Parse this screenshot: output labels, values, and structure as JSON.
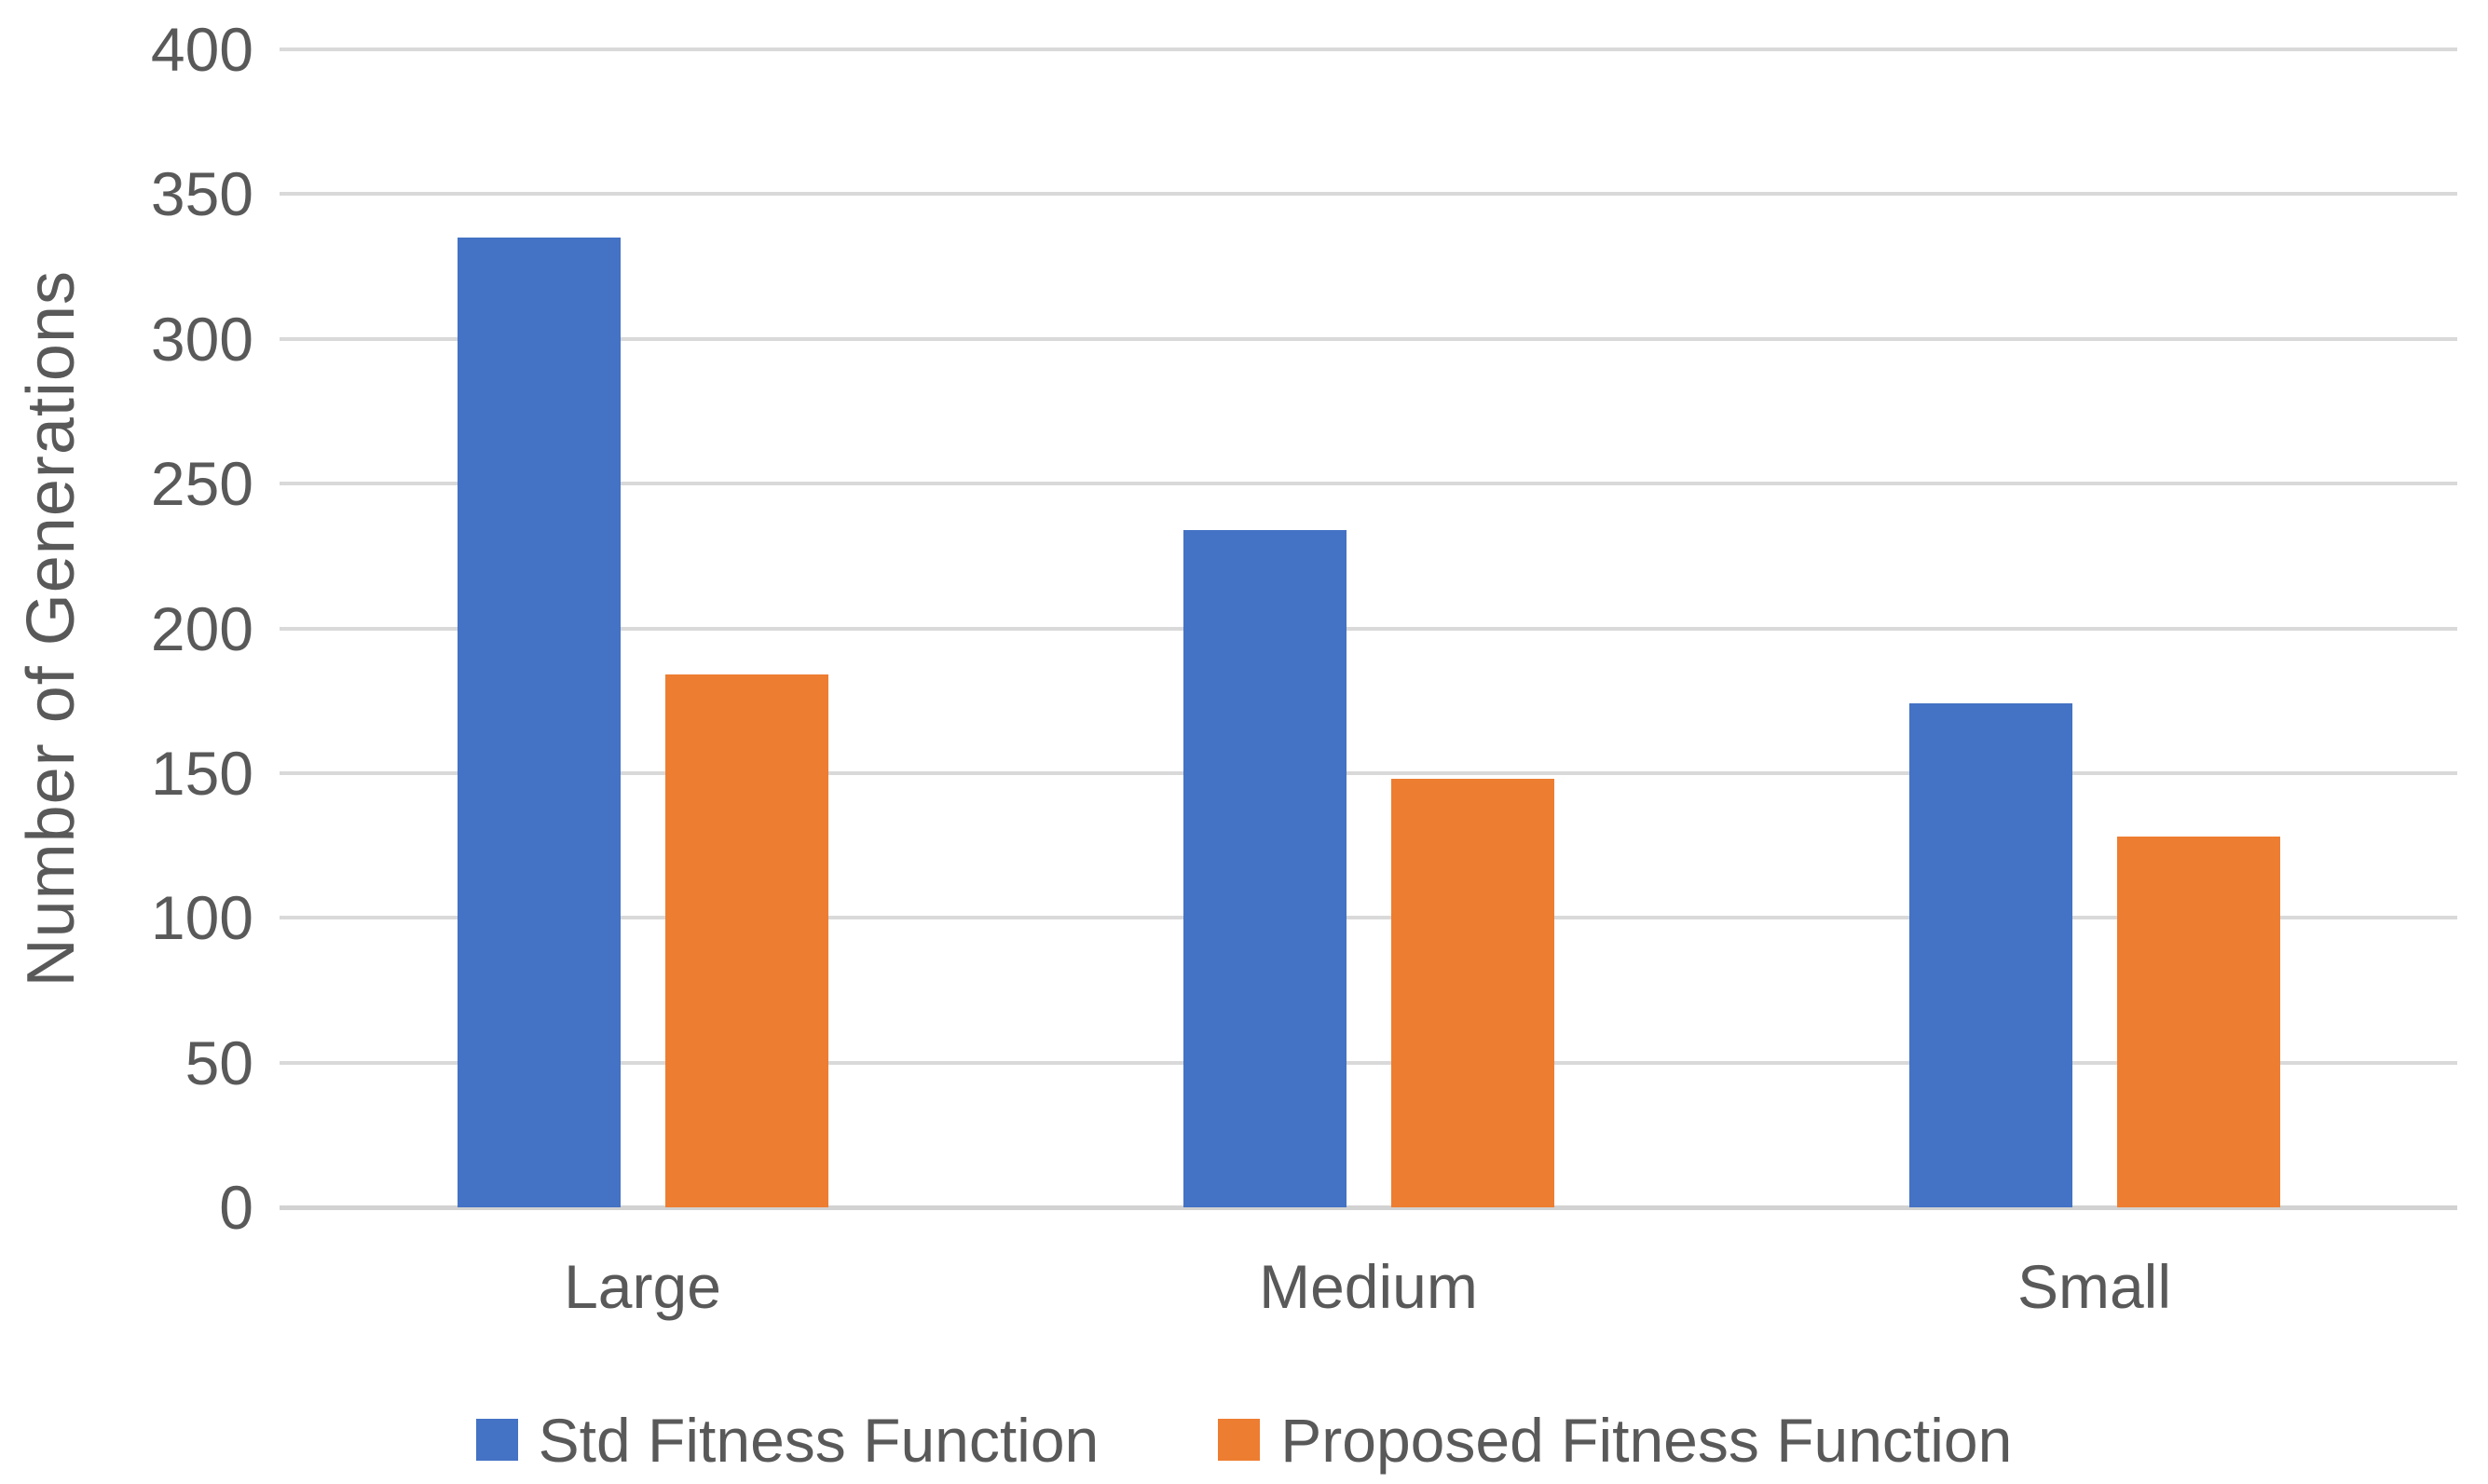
{
  "chart_data": {
    "type": "bar",
    "title": "",
    "categories": [
      "Large",
      "Medium",
      "Small"
    ],
    "series": [
      {
        "name": "Std Fitness Function",
        "color": "#4472C4",
        "values": [
          335,
          234,
          174
        ]
      },
      {
        "name": "Proposed Fitness Function",
        "color": "#ED7D31",
        "values": [
          184,
          148,
          128
        ]
      }
    ],
    "xlabel": "",
    "ylabel": "Number of Generations",
    "ylim": [
      0,
      400
    ],
    "yticks": [
      0,
      50,
      100,
      150,
      200,
      250,
      300,
      350,
      400
    ],
    "grid": "horizontal-only",
    "legend_position": "bottom-center"
  },
  "colors": {
    "series_std": "#4472C4",
    "series_proposed": "#ED7D31",
    "text": "#595959",
    "gridline": "#D9D9D9",
    "background": "#FFFFFF"
  }
}
